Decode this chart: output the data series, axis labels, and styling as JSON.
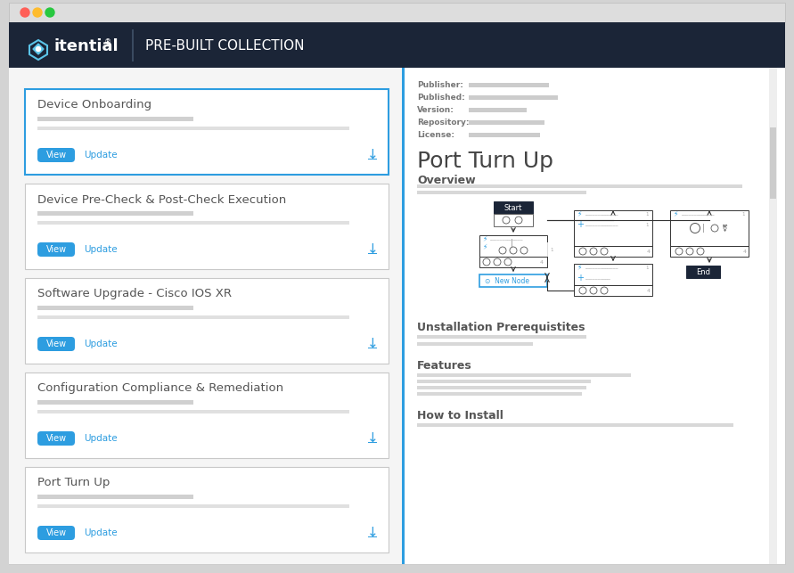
{
  "bg_outer": "#d3d3d3",
  "header_bg": "#1b2537",
  "header_text": "PRE-BUILT COLLECTION",
  "title_bar_dot_colors": [
    "#aaaaaa",
    "#aaaaaa",
    "#aaaaaa"
  ],
  "divider_color": "#2d9de0",
  "card_border_active": "#2d9de0",
  "card_border_inactive": "#c8c8c8",
  "btn_bg": "#2d9de0",
  "btn_text": "View",
  "link_text": "Update",
  "link_color": "#2d9de0",
  "cards": [
    {
      "title": "Device Onboarding",
      "active": true
    },
    {
      "title": "Device Pre-Check & Post-Check Execution",
      "active": false
    },
    {
      "title": "Software Upgrade - Cisco IOS XR",
      "active": false
    },
    {
      "title": "Configuration Compliance & Remediation",
      "active": false
    },
    {
      "title": "Port Turn Up",
      "active": false
    }
  ],
  "right_meta_labels": [
    "Publisher:",
    "Published:",
    "Version:",
    "Repository:",
    "License:"
  ],
  "right_meta_widths": [
    90,
    100,
    65,
    85,
    80
  ],
  "right_title": "Port Turn Up",
  "right_overview": "Overview",
  "right_section2": "Unstallation Prerequistites",
  "right_section3": "Features",
  "right_section4": "How to Install",
  "node_box_color": "#1b2537"
}
